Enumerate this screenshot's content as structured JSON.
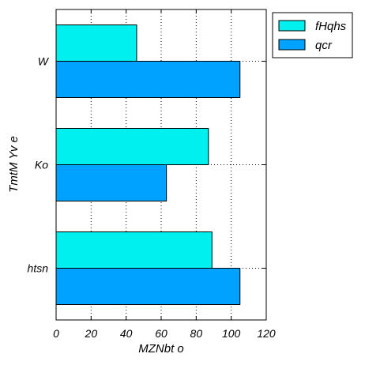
{
  "chart_data": {
    "type": "bar",
    "orientation": "horizontal",
    "categories": [
      "W",
      "Ko",
      "htsn"
    ],
    "series": [
      {
        "name": "fHqhs",
        "color": "#00f0ef",
        "values": [
          46,
          87,
          89
        ]
      },
      {
        "name": "qcr",
        "color": "#00a2ff",
        "values": [
          105,
          63,
          105
        ]
      }
    ],
    "xlabel": "MZNbt o",
    "ylabel": "TmtM  Yv  e",
    "xlim": [
      0,
      120
    ],
    "xticks": [
      0,
      20,
      40,
      60,
      80,
      100,
      120
    ],
    "grid": true,
    "legend": "top-right, outside plot"
  }
}
